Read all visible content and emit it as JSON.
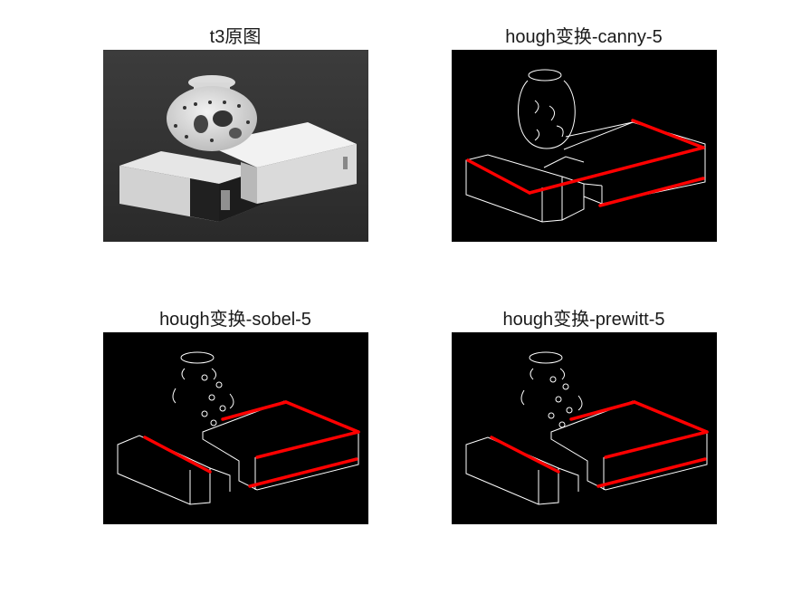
{
  "figure": {
    "subplots": [
      {
        "title": "t3原图"
      },
      {
        "title": "hough变换-canny-5"
      },
      {
        "title": "hough变换-sobel-5"
      },
      {
        "title": "hough变换-prewitt-5"
      }
    ]
  },
  "colors": {
    "background": "#ffffff",
    "edge_image_bg": "#000000",
    "edge_stroke": "#ffffff",
    "hough_line": "#ff0000"
  }
}
